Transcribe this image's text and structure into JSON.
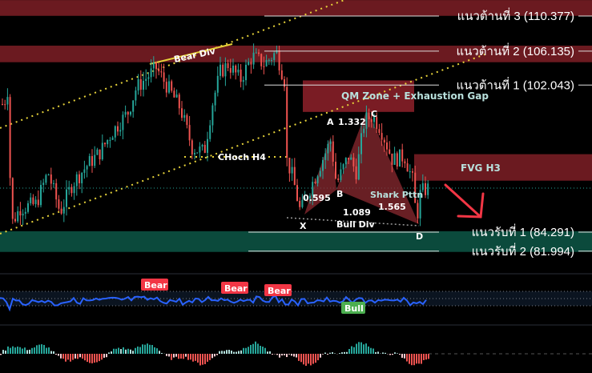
{
  "chart_data": {
    "type": "candlestick",
    "title": "",
    "close": [
      99.75,
      101.68,
      85.25,
      87.19,
      87.67,
      91.54,
      86.7,
      90.09,
      92.5,
      93.95,
      96.37,
      98.78,
      101.68,
      103.13,
      104.1,
      101.68,
      99.27,
      94.44,
      93.95,
      99.75,
      103.61,
      104.58,
      102.65,
      105.55,
      104.58,
      106.03,
      102.65,
      92.99,
      91.05,
      86.7,
      89.12,
      92.5,
      95.4,
      90.09,
      93.47,
      91.54,
      97.82,
      98.3,
      96.85,
      92.99,
      93.47,
      90.57,
      85.74,
      89.12,
      89.6
    ],
    "levels": [
      {
        "label": "แนวต้านที่ 3 (110.377)",
        "price": 110.377
      },
      {
        "label": "แนวต้านที่ 2 (106.135)",
        "price": 106.135
      },
      {
        "label": "แนวต้านที่ 1 (102.043)",
        "price": 102.043
      },
      {
        "label": "แนวรับที่ 1 (84.291)",
        "price": 84.291
      },
      {
        "label": "แนวรับที่ 2 (81.994)",
        "price": 81.994
      }
    ],
    "zones": [
      {
        "label": "",
        "low": 110.4,
        "high": 112.3,
        "color": "#6b1a20"
      },
      {
        "label": "",
        "low": 104.8,
        "high": 106.8,
        "color": "#6b1a20"
      },
      {
        "label": "QM Zone + Exhaustion Gap",
        "low": 98.8,
        "high": 102.6,
        "color": "#7a1c24"
      },
      {
        "label": "FVG H3",
        "low": 90.5,
        "high": 93.7,
        "color": "#6b1a20"
      },
      {
        "label": "",
        "low": 81.9,
        "high": 84.4,
        "color": "#0b4a3c"
      }
    ],
    "annotations": {
      "bear_div": "Bear Div",
      "choch": "CHoch H4",
      "bull_div": "Bull Div",
      "pattern": "Shark Pttn",
      "points": [
        "X",
        "A",
        "B",
        "C",
        "D"
      ],
      "ratios": [
        "1.332",
        "0.595",
        "1.565",
        "1.089"
      ]
    },
    "oscillator": {
      "labels": [
        "Bear",
        "Bear",
        "Bear",
        "Bull"
      ],
      "line_color": "#2962ff"
    },
    "colors": {
      "up": "#26a69a",
      "down": "#ef5350",
      "bear_tag": "#f23645",
      "bull_tag": "#4caf50"
    }
  }
}
